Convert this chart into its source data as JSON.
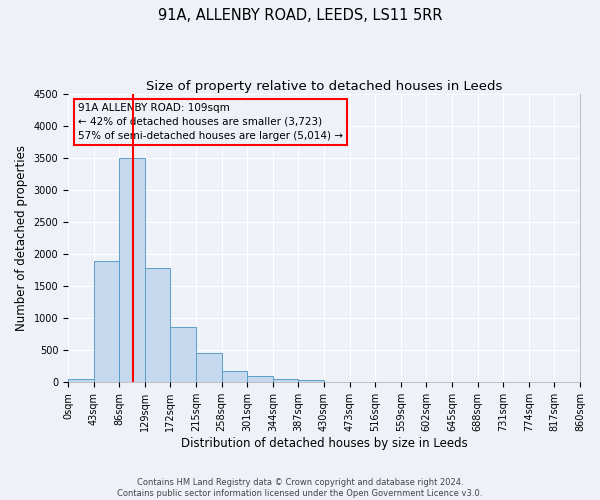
{
  "title": "91A, ALLENBY ROAD, LEEDS, LS11 5RR",
  "subtitle": "Size of property relative to detached houses in Leeds",
  "xlabel": "Distribution of detached houses by size in Leeds",
  "ylabel": "Number of detached properties",
  "bin_labels": [
    "0sqm",
    "43sqm",
    "86sqm",
    "129sqm",
    "172sqm",
    "215sqm",
    "258sqm",
    "301sqm",
    "344sqm",
    "387sqm",
    "430sqm",
    "473sqm",
    "516sqm",
    "559sqm",
    "602sqm",
    "645sqm",
    "688sqm",
    "731sqm",
    "774sqm",
    "817sqm",
    "860sqm"
  ],
  "bin_edges": [
    0,
    43,
    86,
    129,
    172,
    215,
    258,
    301,
    344,
    387,
    430,
    473,
    516,
    559,
    602,
    645,
    688,
    731,
    774,
    817,
    860
  ],
  "bar_heights": [
    50,
    1900,
    3500,
    1780,
    860,
    460,
    175,
    95,
    55,
    30,
    10,
    5,
    3,
    2,
    2,
    2,
    1,
    1,
    1,
    0
  ],
  "bar_color": "#c5d8ed",
  "bar_edge_color": "#5a9fc8",
  "vline_x": 109,
  "vline_color": "red",
  "ylim": [
    0,
    4500
  ],
  "yticks": [
    0,
    500,
    1000,
    1500,
    2000,
    2500,
    3000,
    3500,
    4000,
    4500
  ],
  "annotation_title": "91A ALLENBY ROAD: 109sqm",
  "annotation_line1": "← 42% of detached houses are smaller (3,723)",
  "annotation_line2": "57% of semi-detached houses are larger (5,014) →",
  "annotation_box_color": "red",
  "footer_line1": "Contains HM Land Registry data © Crown copyright and database right 2024.",
  "footer_line2": "Contains public sector information licensed under the Open Government Licence v3.0.",
  "bg_color": "#eef2f8",
  "grid_color": "#ffffff",
  "title_fontsize": 10.5,
  "subtitle_fontsize": 9.5,
  "axis_label_fontsize": 8.5,
  "tick_fontsize": 7,
  "annot_fontsize": 7.5,
  "footer_fontsize": 6
}
